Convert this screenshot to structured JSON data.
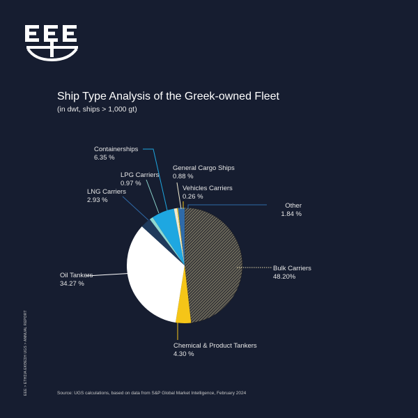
{
  "logo": {
    "text": "EEE"
  },
  "side_text": "EEE > ΕΤΗΣΙΑ ΕΚΘΕΣΗ    UGS > ANNUAL REPORT",
  "source": "Source: UGS calculations, based on data from S&P Global Market Intelligence, February 2024",
  "chart_data": {
    "type": "pie",
    "title": "Ship Type Analysis of the Greek-owned Fleet",
    "subtitle": "(in dwt, ships > 1,000 gt)",
    "slices": [
      {
        "name": "Bulk Carriers",
        "label": "48.20%",
        "value": 48.2,
        "color": "#3a3a3a",
        "pattern": "hatch",
        "line_color": "#e8dcb0",
        "dotted": true
      },
      {
        "name": "Chemical & Product Tankers",
        "label": "4.30 %",
        "value": 4.3,
        "color": "#f5c518",
        "line_color": "#f5c518",
        "dotted": false
      },
      {
        "name": "Oil Tankers",
        "label": "34.27 %",
        "value": 34.27,
        "color": "#ffffff",
        "line_color": "#ffffff",
        "dotted": false
      },
      {
        "name": "LNG Carriers",
        "label": "2.93 %",
        "value": 2.93,
        "color": "#1f3a5c",
        "line_color": "#2f6aa8",
        "dotted": false
      },
      {
        "name": "LPG Carriers",
        "label": "0.97 %",
        "value": 0.97,
        "color": "#8fd8d0",
        "line_color": "#8fd8d0",
        "dotted": false
      },
      {
        "name": "Containerships",
        "label": "6.35 %",
        "value": 6.35,
        "color": "#1ea7e1",
        "line_color": "#1ea7e1",
        "dotted": false
      },
      {
        "name": "General Cargo Ships",
        "label": "0.88 %",
        "value": 0.88,
        "color": "#f0ead0",
        "line_color": "#f0ead0",
        "dotted": false
      },
      {
        "name": "Vehicles Carriers",
        "label": "0.26 %",
        "value": 0.26,
        "color": "#f5c518",
        "line_color": "#f5c518",
        "dotted": false
      },
      {
        "name": "Other",
        "label": "1.84 %",
        "value": 1.84,
        "color": "#2f6aa8",
        "line_color": "#2f6aa8",
        "dotted": false
      }
    ]
  }
}
